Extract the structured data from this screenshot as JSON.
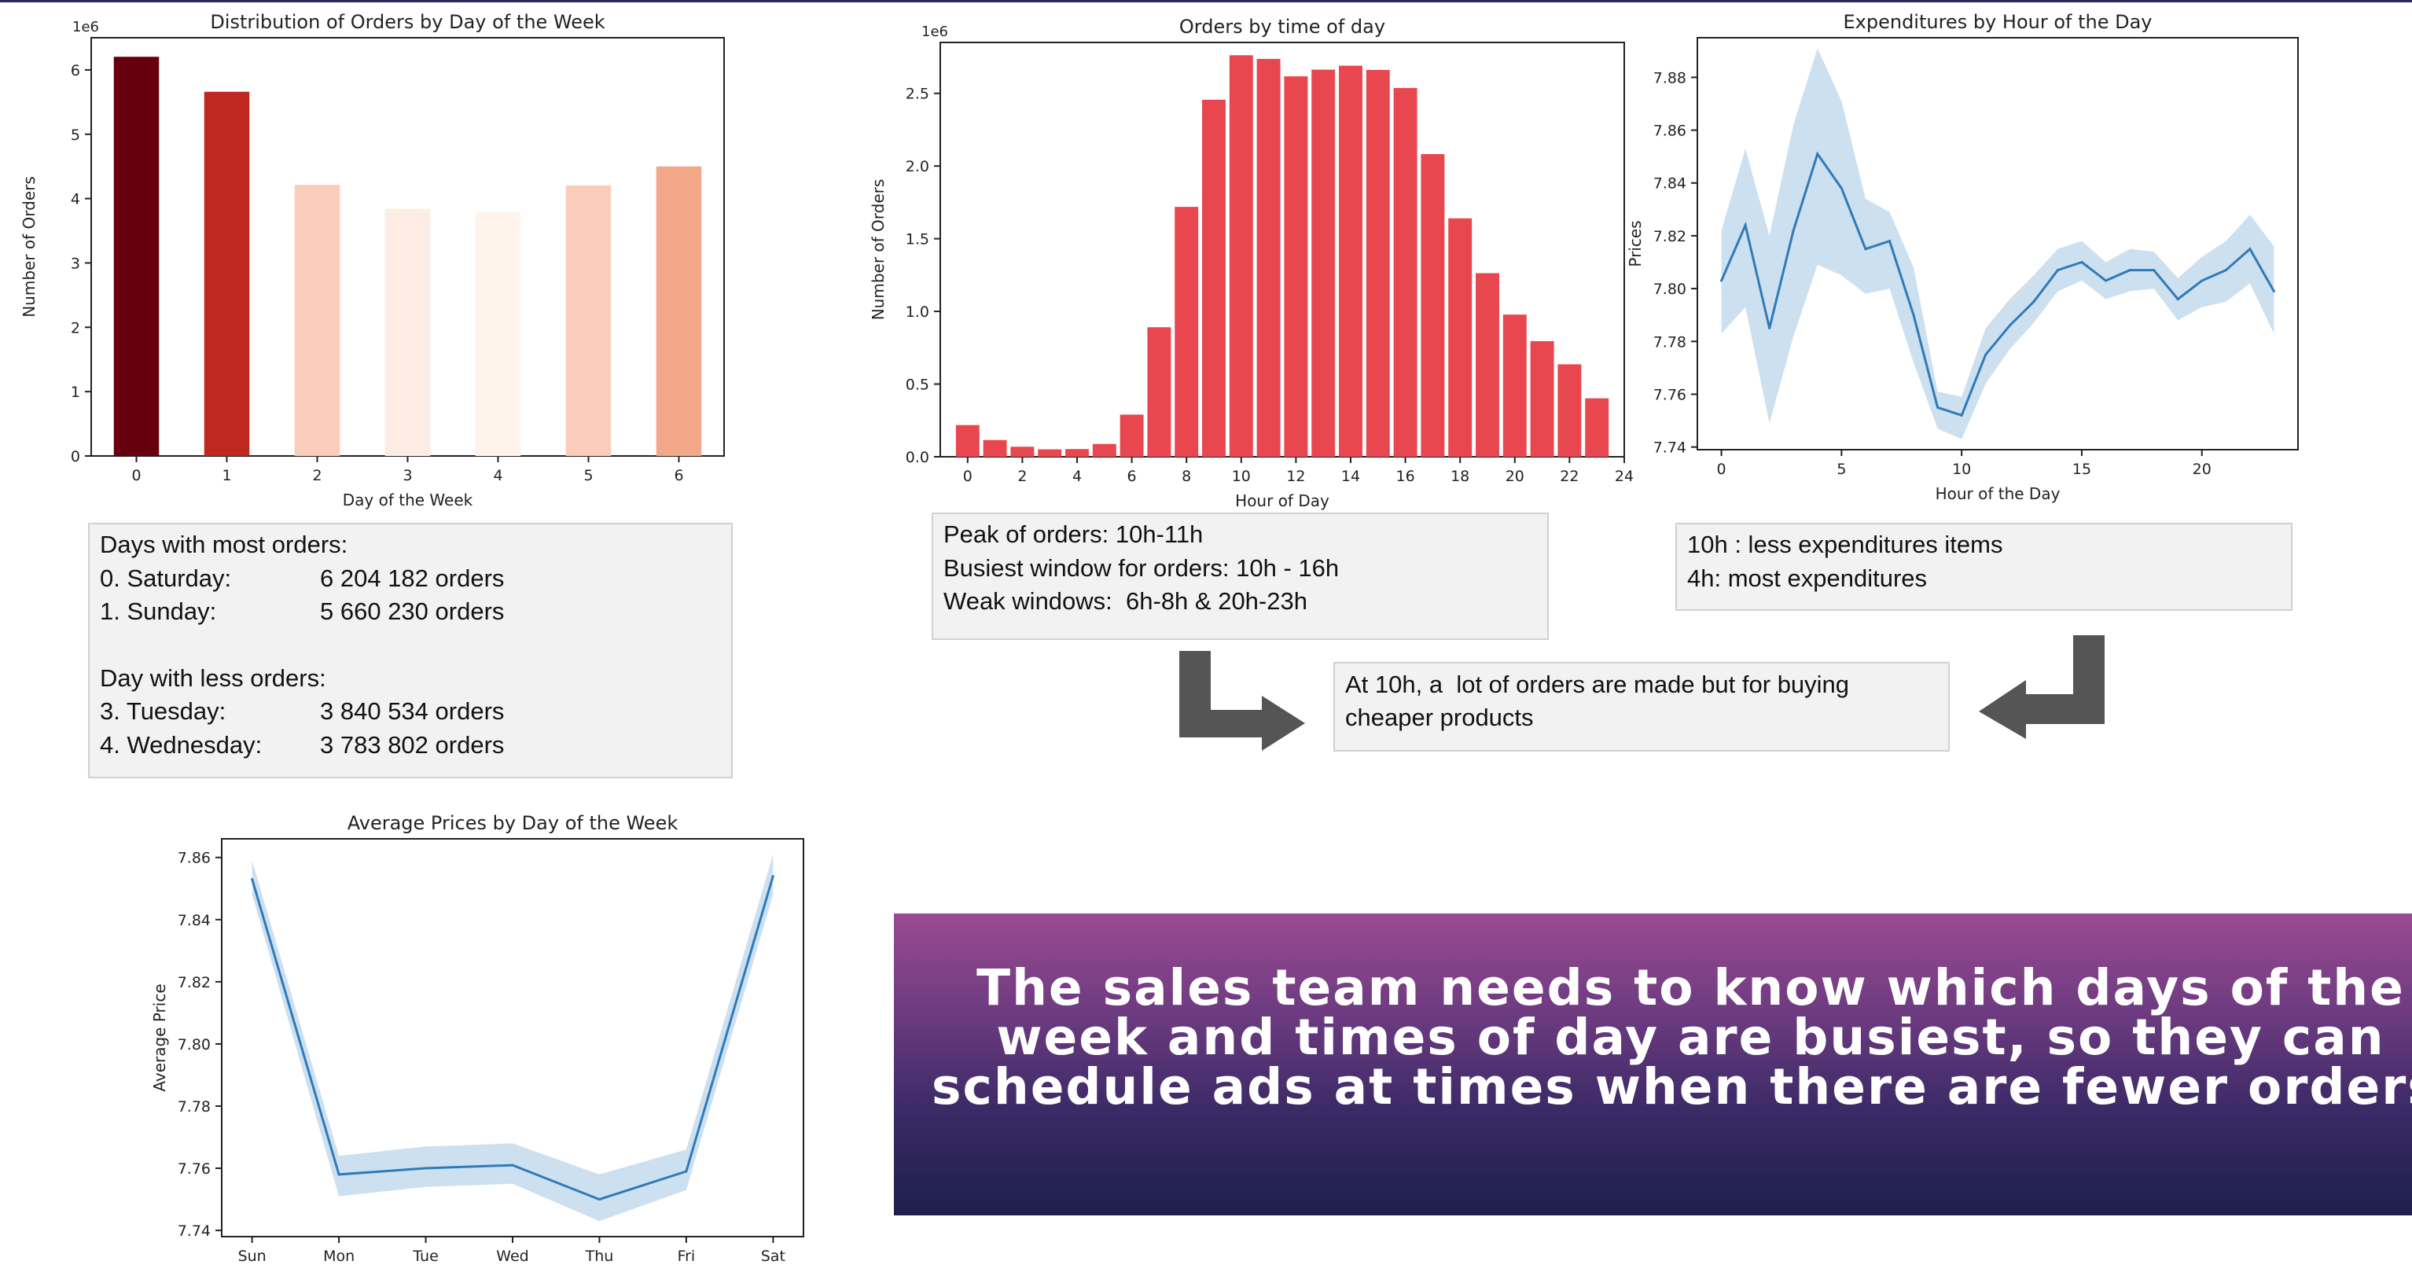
{
  "chart_data": [
    {
      "type": "bar",
      "title": "Distribution of Orders by Day of the Week",
      "xlabel": "Day of the Week",
      "ylabel": "Number of Orders",
      "offset_text": "1e6",
      "categories": [
        "0",
        "1",
        "2",
        "3",
        "4",
        "5",
        "6"
      ],
      "values": [
        6.204182,
        5.66023,
        4.213,
        3.840534,
        3.783802,
        4.205,
        4.5
      ],
      "colors": [
        "#67000d",
        "#c0271f",
        "#f9cdb9",
        "#fcece4",
        "#fff3ec",
        "#f9cdb9",
        "#f3a88a"
      ],
      "ylim": [
        0,
        6.5
      ],
      "yticks": [
        0,
        1,
        2,
        3,
        4,
        5,
        6
      ],
      "grid": false
    },
    {
      "type": "bar",
      "title": "Orders by time of day",
      "xlabel": "Hour of Day",
      "ylabel": "Number of Orders",
      "offset_text": "1e6",
      "x": [
        0,
        1,
        2,
        3,
        4,
        5,
        6,
        7,
        8,
        9,
        10,
        11,
        12,
        13,
        14,
        15,
        16,
        17,
        18,
        19,
        20,
        21,
        22,
        23
      ],
      "values": [
        0.218,
        0.115,
        0.069,
        0.051,
        0.053,
        0.088,
        0.29,
        0.891,
        1.719,
        2.456,
        2.762,
        2.737,
        2.617,
        2.663,
        2.69,
        2.661,
        2.537,
        2.082,
        1.64,
        1.263,
        0.978,
        0.795,
        0.636,
        0.402
      ],
      "color": "#e8474f",
      "xlim": [
        -1,
        24
      ],
      "ylim": [
        0,
        2.85
      ],
      "xticks": [
        0,
        2,
        4,
        6,
        8,
        10,
        12,
        14,
        16,
        18,
        20,
        22,
        24
      ],
      "yticks": [
        0.0,
        0.5,
        1.0,
        1.5,
        2.0,
        2.5
      ],
      "ytick_labels": [
        "0.0",
        "0.5",
        "1.0",
        "1.5",
        "2.0",
        "2.5"
      ],
      "grid": false
    },
    {
      "type": "line",
      "title": "Expenditures by Hour of the Day",
      "xlabel": "Hour of the Day",
      "ylabel": "Prices",
      "x": [
        0,
        1,
        2,
        3,
        4,
        5,
        6,
        7,
        8,
        9,
        10,
        11,
        12,
        13,
        14,
        15,
        16,
        17,
        18,
        19,
        20,
        21,
        22,
        23
      ],
      "y": [
        7.803,
        7.824,
        7.785,
        7.822,
        7.851,
        7.838,
        7.815,
        7.818,
        7.79,
        7.755,
        7.752,
        7.775,
        7.786,
        7.795,
        7.807,
        7.81,
        7.803,
        7.807,
        7.807,
        7.796,
        7.803,
        7.807,
        7.815,
        7.799
      ],
      "ci_low": [
        7.783,
        7.793,
        7.749,
        7.782,
        7.809,
        7.805,
        7.798,
        7.8,
        7.772,
        7.747,
        7.743,
        7.764,
        7.777,
        7.787,
        7.799,
        7.803,
        7.796,
        7.799,
        7.8,
        7.788,
        7.793,
        7.795,
        7.802,
        7.783
      ],
      "ci_high": [
        7.822,
        7.853,
        7.82,
        7.862,
        7.891,
        7.871,
        7.834,
        7.829,
        7.808,
        7.761,
        7.759,
        7.785,
        7.796,
        7.805,
        7.815,
        7.818,
        7.81,
        7.815,
        7.814,
        7.804,
        7.812,
        7.818,
        7.828,
        7.816
      ],
      "color": "#2f7ab9",
      "band_color": "#bcd5ea",
      "xlim": [
        -1,
        24
      ],
      "ylim": [
        7.739,
        7.895
      ],
      "xticks": [
        0,
        5,
        10,
        15,
        20
      ],
      "yticks": [
        7.74,
        7.76,
        7.78,
        7.8,
        7.82,
        7.84,
        7.86,
        7.88
      ],
      "ytick_labels": [
        "7.74",
        "7.76",
        "7.78",
        "7.80",
        "7.82",
        "7.84",
        "7.86",
        "7.88"
      ],
      "grid": false
    },
    {
      "type": "line",
      "title": "Average Prices by Day of the Week",
      "xlabel": "Day of the Week",
      "ylabel": "Average Price",
      "categories": [
        "Sun",
        "Mon",
        "Tue",
        "Wed",
        "Thu",
        "Fri",
        "Sat"
      ],
      "y": [
        7.853,
        7.758,
        7.76,
        7.761,
        7.75,
        7.759,
        7.854
      ],
      "ci_low": [
        7.848,
        7.751,
        7.754,
        7.755,
        7.743,
        7.753,
        7.848
      ],
      "ci_high": [
        7.859,
        7.764,
        7.767,
        7.768,
        7.758,
        7.766,
        7.861
      ],
      "color": "#2f7ab9",
      "band_color": "#bcd5ea",
      "ylim": [
        7.738,
        7.866
      ],
      "yticks": [
        7.74,
        7.76,
        7.78,
        7.8,
        7.82,
        7.84,
        7.86
      ],
      "ytick_labels": [
        "7.74",
        "7.76",
        "7.78",
        "7.80",
        "7.82",
        "7.84",
        "7.86"
      ],
      "grid": false
    }
  ],
  "notes": {
    "days": {
      "heading1": "Days with most orders:",
      "row1_label": "0. Saturday:",
      "row1_value": "6 204 182 orders",
      "row2_label": "1. Sunday:",
      "row2_value": "5 660 230 orders",
      "heading2": "Day with less orders:",
      "row3_label": "3. Tuesday:",
      "row3_value": "3 840 534 orders",
      "row4_label": "4. Wednesday:",
      "row4_value": "3 783 802 orders"
    },
    "hours": {
      "line1": "Peak of orders: 10h-11h",
      "line2": "Busiest window for orders: 10h - 16h",
      "line3": "Weak windows:  6h-8h & 20h-23h"
    },
    "expenditure": {
      "line1": "10h : less expenditures items",
      "line2": "4h: most expenditures"
    },
    "conclusion": {
      "line1": "At 10h, a  lot of orders are made but for buying",
      "line2": "cheaper products"
    }
  },
  "arrows": {
    "color": "#555555",
    "left_icon": "arrow-down-right-icon",
    "right_icon": "arrow-down-left-icon"
  },
  "banner": {
    "line1": "The sales team needs to know which days of the",
    "line2": "week and times of day are busiest, so they can",
    "line3": "schedule ads at times when there are fewer orders."
  }
}
